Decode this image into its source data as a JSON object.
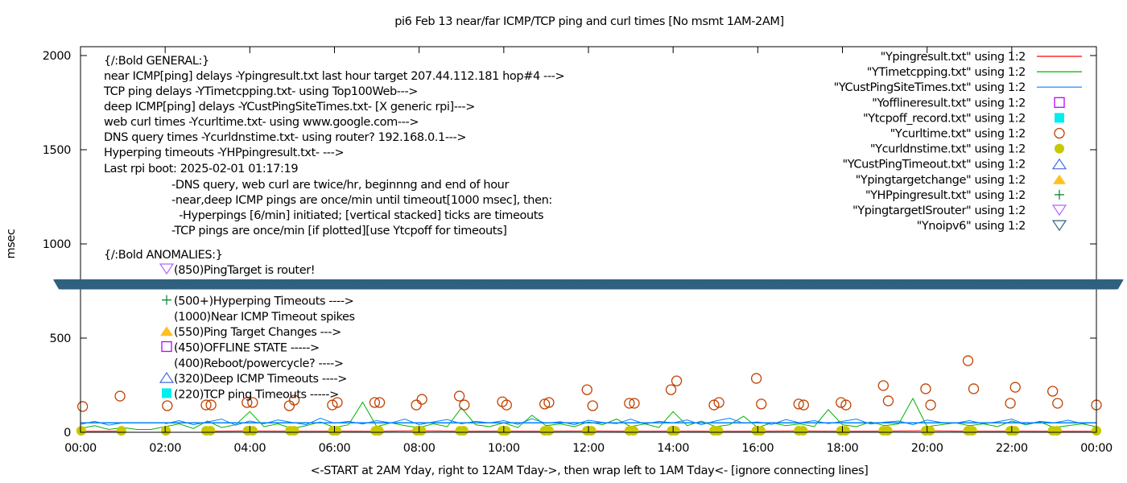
{
  "chart_data": {
    "type": "line",
    "title": "pi6 Feb 13  near/far ICMP/TCP ping and curl times [No msmt 1AM-2AM]",
    "xlabel": "<-START at 2AM Yday, right to 12AM Tday->, then wrap left to 1AM Tday<- [ignore connecting lines]",
    "ylabel": "msec",
    "xlim": [
      "00:00",
      "24:00"
    ],
    "ylim": [
      0,
      2050
    ],
    "x_ticks": [
      "00:00",
      "02:00",
      "04:00",
      "06:00",
      "08:00",
      "10:00",
      "12:00",
      "14:00",
      "16:00",
      "18:00",
      "20:00",
      "22:00",
      "00:00"
    ],
    "y_ticks": [
      "0",
      "500",
      "1000",
      "1500",
      "2000"
    ],
    "y_tick_values": [
      0,
      500,
      1000,
      1500,
      2000
    ],
    "grid": false,
    "legend_placement": "top-right",
    "annotations": {
      "general": [
        "{/:Bold GENERAL:}",
        "near ICMP[ping] delays -Ypingresult.txt last hour target 207.44.112.181 hop#4 --->",
        "TCP ping delays -YTimetcpping.txt- using Top100Web--->",
        "deep ICMP[ping] delays -YCustPingSiteTimes.txt- [X generic rpi]--->",
        "web curl times -Ycurltime.txt- using www.google.com--->",
        "DNS query times -Ycurldnstime.txt- using router? 192.168.0.1--->",
        "Hyperping timeouts -YHPpingresult.txt- --->",
        "Last rpi boot: 2025-02-01 01:17:19"
      ],
      "notes": [
        "-DNS query, web curl are twice/hr, beginnng and end of hour",
        "-near,deep ICMP pings are once/min until timeout[1000 msec], then:",
        " -Hyperpings [6/min] initiated; [vertical stacked] ticks are timeouts",
        "-TCP pings are once/min [if plotted][use Ytcpoff for timeouts]"
      ],
      "anomalies_heading": "{/:Bold ANOMALIES:}",
      "anomalies": [
        {
          "symbol": "triangle-down-open",
          "color": "#b266ff",
          "text": "(850)PingTarget is router!"
        },
        {
          "symbol": "none",
          "color": "",
          "text": ""
        },
        {
          "symbol": "plus",
          "color": "#00802a",
          "text": "(500+)Hyperping Timeouts ---->"
        },
        {
          "symbol": "none",
          "color": "",
          "text": "(1000)Near ICMP Timeout spikes"
        },
        {
          "symbol": "triangle-up-filled",
          "color": "#ffc020",
          "text": "(550)Ping Target Changes --->"
        },
        {
          "symbol": "square-open",
          "color": "#c000ff",
          "text": "(450)OFFLINE STATE ----->"
        },
        {
          "symbol": "none",
          "color": "",
          "text": "(400)Reboot/powercycle? ---->"
        },
        {
          "symbol": "triangle-up-open",
          "color": "#4169e1",
          "text": "(320)Deep ICMP Timeouts ---->"
        },
        {
          "symbol": "square-filled",
          "color": "#00eeee",
          "text": "(220)TCP ping Timeouts ----->"
        }
      ]
    },
    "legend": [
      {
        "label": "\"Ypingresult.txt\" using 1:2",
        "style": "line",
        "color": "#ff0000"
      },
      {
        "label": "\"YTimetcpping.txt\" using 1:2",
        "style": "line",
        "color": "#00b000"
      },
      {
        "label": "\"YCustPingSiteTimes.txt\" using 1:2",
        "style": "line",
        "color": "#0080ff"
      },
      {
        "label": "\"Yofflineresult.txt\" using 1:2",
        "style": "square-open",
        "color": "#c000ff"
      },
      {
        "label": "\"Ytcpoff_record.txt\" using 1:2",
        "style": "square-filled",
        "color": "#00eeee"
      },
      {
        "label": "\"Ycurltime.txt\" using 1:2",
        "style": "circle-open",
        "color": "#c04000"
      },
      {
        "label": "\"Ycurldnstime.txt\" using 1:2",
        "style": "circle-filled",
        "color": "#c8c800"
      },
      {
        "label": "\"YCustPingTimeout.txt\" using 1:2",
        "style": "triangle-up-open",
        "color": "#4169e1"
      },
      {
        "label": "\"Ypingtargetchange\" using 1:2",
        "style": "triangle-up-filled",
        "color": "#ffc020"
      },
      {
        "label": "\"YHPpingresult.txt\" using 1:2",
        "style": "plus",
        "color": "#00802a"
      },
      {
        "label": "\"YpingtargetISrouter\" using 1:2",
        "style": "triangle-down-open",
        "color": "#b266ff"
      },
      {
        "label": "\"Ynoipv6\" using 1:2",
        "style": "triangle-down-open",
        "color": "#306080"
      }
    ],
    "series": [
      {
        "name": "\"Ypingresult.txt\" using 1:2",
        "color": "#ff0000",
        "x_step_hours": 1,
        "values": [
          5,
          6,
          null,
          5,
          7,
          5,
          6,
          5,
          8,
          5,
          6,
          5,
          7,
          5,
          6,
          5,
          5,
          7,
          5,
          6,
          8,
          5,
          6,
          5,
          5
        ]
      },
      {
        "name": "\"YTimetcpping.txt\" using 1:2",
        "color": "#00b000",
        "x_step_hours": 0.3333,
        "values": [
          20,
          35,
          15,
          25,
          15,
          15,
          30,
          45,
          20,
          60,
          25,
          40,
          110,
          30,
          45,
          20,
          35,
          55,
          25,
          40,
          160,
          30,
          50,
          35,
          25,
          45,
          30,
          130,
          40,
          30,
          50,
          25,
          90,
          35,
          45,
          30,
          55,
          40,
          70,
          30,
          45,
          25,
          110,
          35,
          60,
          30,
          40,
          85,
          25,
          50,
          35,
          45,
          30,
          120,
          40,
          30,
          55,
          35,
          45,
          180,
          30,
          40,
          50,
          35,
          45,
          30,
          60,
          40,
          55,
          25,
          35,
          45,
          30
        ]
      },
      {
        "name": "\"YCustPingSiteTimes.txt\" using 1:2",
        "color": "#0080ff",
        "x_step_hours": 0.3333,
        "values": [
          42,
          58,
          38,
          50,
          null,
          null,
          45,
          62,
          40,
          55,
          70,
          38,
          60,
          45,
          66,
          52,
          40,
          75,
          48,
          58,
          44,
          62,
          50,
          70,
          40,
          55,
          68,
          45,
          58,
          50,
          62,
          42,
          72,
          48,
          56,
          40,
          64,
          52,
          46,
          70,
          44,
          58,
          50,
          66,
          40,
          60,
          75,
          48,
          55,
          42,
          68,
          50,
          62,
          46,
          58,
          70,
          44,
          54,
          60,
          40,
          65,
          52,
          48,
          62,
          45,
          56,
          70,
          42,
          58,
          50,
          64,
          46,
          52
        ]
      },
      {
        "name": "\"Ycurltime.txt\" using 1:2",
        "color": "#c04000",
        "style": "circle-open",
        "points": [
          [
            "00:03",
            137
          ],
          [
            "00:56",
            192
          ],
          [
            "02:03",
            141
          ],
          [
            "02:58",
            145
          ],
          [
            "03:05",
            145
          ],
          [
            "03:56",
            158
          ],
          [
            "04:04",
            158
          ],
          [
            "04:56",
            141
          ],
          [
            "05:03",
            171
          ],
          [
            "05:57",
            145
          ],
          [
            "06:04",
            158
          ],
          [
            "06:57",
            158
          ],
          [
            "07:04",
            158
          ],
          [
            "07:56",
            145
          ],
          [
            "08:04",
            175
          ],
          [
            "08:57",
            192
          ],
          [
            "09:04",
            145
          ],
          [
            "09:58",
            162
          ],
          [
            "10:04",
            145
          ],
          [
            "10:58",
            150
          ],
          [
            "11:04",
            158
          ],
          [
            "11:58",
            226
          ],
          [
            "12:06",
            141
          ],
          [
            "12:58",
            154
          ],
          [
            "13:05",
            154
          ],
          [
            "13:57",
            226
          ],
          [
            "14:05",
            273
          ],
          [
            "14:58",
            145
          ],
          [
            "15:05",
            158
          ],
          [
            "15:58",
            286
          ],
          [
            "16:05",
            150
          ],
          [
            "16:58",
            150
          ],
          [
            "17:05",
            145
          ],
          [
            "17:58",
            158
          ],
          [
            "18:05",
            145
          ],
          [
            "18:58",
            248
          ],
          [
            "19:05",
            167
          ],
          [
            "19:58",
            231
          ],
          [
            "20:05",
            145
          ],
          [
            "20:58",
            380
          ],
          [
            "21:06",
            231
          ],
          [
            "21:58",
            154
          ],
          [
            "22:05",
            239
          ],
          [
            "22:58",
            218
          ],
          [
            "23:05",
            154
          ],
          [
            "24:00",
            145
          ]
        ]
      },
      {
        "name": "\"Ycurldnstime.txt\" using 1:2",
        "color": "#c8c800",
        "style": "circle-filled",
        "points": [
          [
            "00:01",
            8
          ],
          [
            "00:58",
            8
          ],
          [
            "02:01",
            8
          ],
          [
            "02:58",
            8
          ],
          [
            "03:04",
            8
          ],
          [
            "03:57",
            8
          ],
          [
            "04:04",
            8
          ],
          [
            "04:57",
            8
          ],
          [
            "05:03",
            8
          ],
          [
            "05:58",
            8
          ],
          [
            "06:03",
            8
          ],
          [
            "06:58",
            8
          ],
          [
            "07:03",
            8
          ],
          [
            "07:57",
            8
          ],
          [
            "08:03",
            8
          ],
          [
            "08:58",
            8
          ],
          [
            "09:03",
            8
          ],
          [
            "09:58",
            8
          ],
          [
            "10:03",
            8
          ],
          [
            "10:58",
            8
          ],
          [
            "11:04",
            8
          ],
          [
            "11:58",
            8
          ],
          [
            "12:04",
            8
          ],
          [
            "12:58",
            8
          ],
          [
            "13:04",
            8
          ],
          [
            "13:58",
            8
          ],
          [
            "14:03",
            8
          ],
          [
            "14:58",
            8
          ],
          [
            "15:04",
            8
          ],
          [
            "15:58",
            8
          ],
          [
            "16:04",
            8
          ],
          [
            "16:58",
            8
          ],
          [
            "17:04",
            8
          ],
          [
            "17:58",
            8
          ],
          [
            "18:04",
            8
          ],
          [
            "18:58",
            8
          ],
          [
            "19:04",
            8
          ],
          [
            "19:58",
            8
          ],
          [
            "20:04",
            8
          ],
          [
            "20:58",
            8
          ],
          [
            "21:04",
            8
          ],
          [
            "21:58",
            8
          ],
          [
            "22:04",
            8
          ],
          [
            "22:58",
            8
          ],
          [
            "23:04",
            8
          ],
          [
            "24:00",
            8
          ]
        ]
      },
      {
        "name": "\"Ynoipv6\" using 1:2",
        "color": "#306080",
        "style": "triangle-down-open",
        "value": 785,
        "ranges": [
          [
            "00:00",
            "01:08"
          ],
          [
            "01:55",
            "24:00"
          ]
        ]
      }
    ]
  }
}
